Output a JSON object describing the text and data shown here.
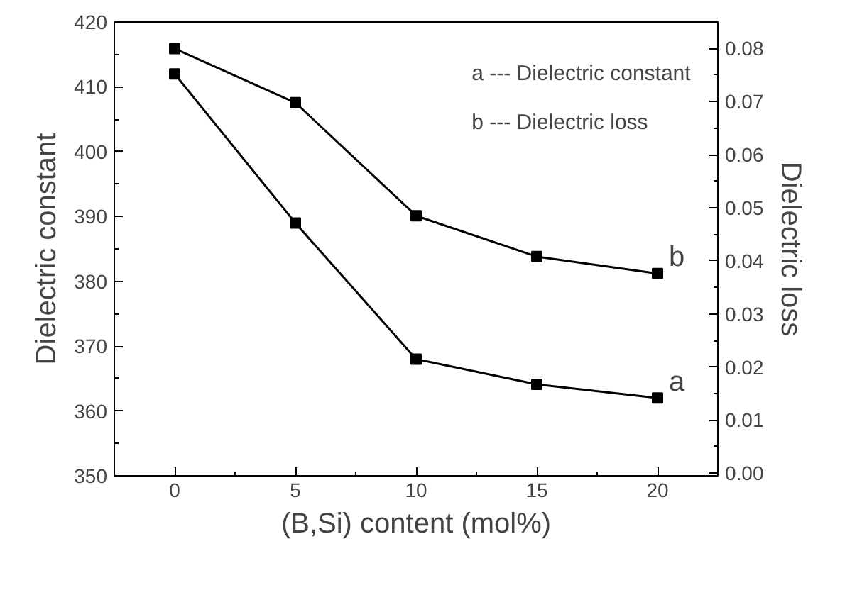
{
  "chart_data": {
    "type": "line",
    "xlabel": "(B,Si) content (mol%)",
    "ylabel": "Dielectric constant",
    "y2label": "Dielectric loss",
    "x": [
      0,
      5,
      10,
      15,
      20
    ],
    "series": [
      {
        "color": "#000000",
        "values": [
          412.0,
          389.0,
          368.0,
          364.1,
          362.0
        ]
      },
      {
        "color": "#000000",
        "axis": "y2",
        "values": [
          0.08,
          0.0698,
          0.0485,
          0.0408,
          0.0376
        ]
      }
    ],
    "xlim": [
      -2.5,
      22.5
    ],
    "xticks": [
      0,
      5,
      10,
      15,
      20
    ],
    "ylim": [
      350,
      420
    ],
    "yticks": [
      350,
      360,
      370,
      380,
      390,
      400,
      410,
      420
    ],
    "y2lim": [
      -0.0005,
      0.085
    ],
    "y2ticks": [
      {
        "value": 0,
        "label": "0.00"
      },
      {
        "value": 0.01,
        "label": "0.01"
      },
      {
        "value": 0.02,
        "label": "0.02"
      },
      {
        "value": 0.03,
        "label": "0.03"
      },
      {
        "value": 0.04,
        "label": "0.04"
      },
      {
        "value": 0.05,
        "label": "0.05"
      },
      {
        "value": 0.06,
        "label": "0.06"
      },
      {
        "value": 0.07,
        "label": "0.07"
      },
      {
        "value": 0.08,
        "label": "0.08"
      }
    ],
    "annotations": [
      "a --- Dielectric constant",
      "b --- Dielectric loss",
      {
        "text": "a",
        "x": 20,
        "y": 362.0
      },
      {
        "text": "b",
        "x": 20,
        "y": 381.3
      }
    ],
    "marker": "square",
    "line_style": "solid",
    "grid": false
  }
}
